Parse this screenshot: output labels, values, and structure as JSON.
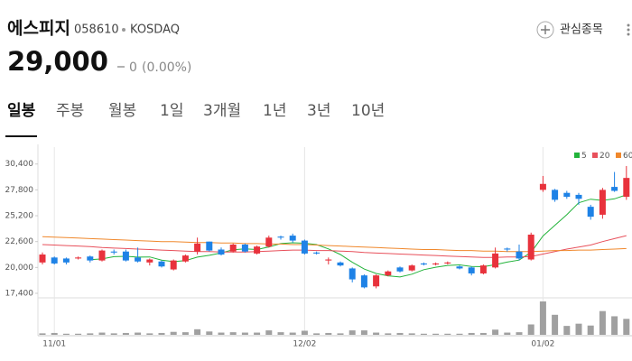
{
  "header": {
    "name": "에스피지",
    "code": "058610",
    "market": "KOSDAQ",
    "price": "29,000",
    "change": "0",
    "change_pct": "(0.00%)",
    "watch_button": "관심종목"
  },
  "tabs": [
    "일봉",
    "주봉",
    "월봉",
    "1일",
    "3개월",
    "1년",
    "3년",
    "10년"
  ],
  "chart_data": {
    "type": "candlestick",
    "categories": [
      null,
      "11/01",
      null,
      null,
      null,
      null,
      null,
      null,
      null,
      null,
      null,
      null,
      null,
      null,
      null,
      null,
      null,
      null,
      null,
      null,
      null,
      null,
      "12/02",
      null,
      null,
      null,
      null,
      null,
      null,
      null,
      null,
      null,
      null,
      null,
      null,
      null,
      null,
      null,
      null,
      null,
      null,
      null,
      "01/02",
      null,
      null,
      null,
      null,
      null,
      null,
      null
    ],
    "ohlc": {
      "open": [
        20500,
        21000,
        20900,
        20900,
        21100,
        20700,
        21600,
        21600,
        21000,
        20500,
        20600,
        19800,
        20600,
        21600,
        22600,
        21800,
        21600,
        22300,
        21400,
        22100,
        23100,
        23200,
        22700,
        21500,
        20700,
        20500,
        19900,
        19200,
        18100,
        19200,
        20000,
        19700,
        20400,
        20300,
        20400,
        20100,
        20000,
        19400,
        20000,
        21900,
        21600,
        20800,
        27800,
        27800,
        27500,
        27300,
        26100,
        25300,
        28100,
        27100
      ],
      "high": [
        21500,
        21100,
        21000,
        21100,
        21200,
        21800,
        21800,
        21800,
        22000,
        20900,
        20700,
        20800,
        21300,
        23000,
        22600,
        22000,
        22400,
        22400,
        22200,
        23200,
        23200,
        23400,
        22800,
        21600,
        21000,
        20600,
        20000,
        19300,
        19300,
        19700,
        20100,
        20300,
        20500,
        20500,
        20600,
        20200,
        20100,
        20300,
        22000,
        22000,
        22300,
        23500,
        29200,
        27900,
        27700,
        27500,
        26300,
        28000,
        29600,
        30200
      ],
      "low": [
        20300,
        20300,
        20300,
        20800,
        20500,
        20600,
        21300,
        20600,
        20500,
        20200,
        20000,
        19700,
        20500,
        21300,
        21600,
        21200,
        21500,
        21500,
        21300,
        22000,
        22800,
        22500,
        21300,
        21300,
        20300,
        20100,
        18500,
        17900,
        17900,
        19100,
        19500,
        19600,
        20200,
        20200,
        20300,
        19800,
        19200,
        19300,
        19900,
        21600,
        20700,
        20700,
        27600,
        26600,
        26900,
        26300,
        24800,
        24900,
        27600,
        26800
      ],
      "close": [
        21300,
        20400,
        20500,
        21000,
        20700,
        21700,
        21500,
        20700,
        20600,
        20800,
        20100,
        20700,
        21200,
        22400,
        21700,
        21300,
        22300,
        21600,
        22100,
        23000,
        23000,
        22700,
        21400,
        21400,
        20800,
        20200,
        18800,
        18000,
        19200,
        19600,
        19600,
        20200,
        20300,
        20400,
        20500,
        19900,
        19400,
        20200,
        21400,
        21800,
        20900,
        23300,
        28400,
        26800,
        27100,
        26900,
        25100,
        27800,
        27700,
        29000
      ]
    },
    "volume": [
      40000,
      50000,
      30000,
      30000,
      40000,
      60000,
      40000,
      50000,
      60000,
      40000,
      50000,
      80000,
      70000,
      150000,
      90000,
      60000,
      70000,
      60000,
      60000,
      120000,
      70000,
      60000,
      110000,
      40000,
      50000,
      40000,
      120000,
      120000,
      60000,
      40000,
      50000,
      40000,
      30000,
      30000,
      30000,
      30000,
      50000,
      50000,
      140000,
      60000,
      70000,
      280000,
      900000,
      540000,
      240000,
      300000,
      250000,
      640000,
      500000,
      430000
    ],
    "series": [
      {
        "name": "5",
        "color": "#22b33a",
        "values": [
          null,
          null,
          null,
          null,
          20780,
          20860,
          21080,
          21120,
          21040,
          21060,
          20740,
          20580,
          20680,
          21040,
          21220,
          21460,
          21780,
          21860,
          21800,
          22060,
          22400,
          22480,
          22440,
          22300,
          21860,
          21300,
          20520,
          19840,
          19400,
          19160,
          19040,
          19320,
          19780,
          20020,
          20200,
          20260,
          20100,
          20080,
          20280,
          20540,
          20740,
          21520,
          23160,
          24240,
          25300,
          26500,
          26860,
          26740,
          26900,
          27300
        ]
      },
      {
        "name": "20",
        "color": "#e8505b",
        "values": [
          22300,
          22250,
          22200,
          22150,
          22100,
          22000,
          21950,
          21900,
          21850,
          21800,
          21750,
          21700,
          21650,
          21600,
          21600,
          21550,
          21550,
          21550,
          21600,
          21650,
          21700,
          21750,
          21750,
          21700,
          21700,
          21650,
          21600,
          21500,
          21450,
          21400,
          21350,
          21300,
          21250,
          21200,
          21150,
          21100,
          21050,
          21000,
          21000,
          21050,
          21050,
          21100,
          21350,
          21600,
          21850,
          22050,
          22250,
          22600,
          22900,
          23200
        ]
      },
      {
        "name": "60",
        "color": "#f0882c",
        "values": [
          23100,
          23050,
          23000,
          22950,
          22900,
          22850,
          22800,
          22750,
          22700,
          22650,
          22600,
          22600,
          22550,
          22500,
          22500,
          22450,
          22450,
          22400,
          22400,
          22350,
          22350,
          22300,
          22300,
          22250,
          22200,
          22150,
          22100,
          22050,
          22000,
          21950,
          21900,
          21850,
          21800,
          21800,
          21750,
          21700,
          21700,
          21650,
          21650,
          21600,
          21600,
          21600,
          21650,
          21700,
          21700,
          21750,
          21750,
          21800,
          21850,
          21900
        ]
      }
    ],
    "up_color": "#e8323c",
    "down_color": "#1e82e6",
    "volume_color": "#a0a0a0",
    "ylim": [
      17000,
      32100
    ],
    "yticks": [
      {
        "value": 30400,
        "label": "30,400"
      },
      {
        "value": 27800,
        "label": "27,800"
      },
      {
        "value": 25200,
        "label": "25,200"
      },
      {
        "value": 22600,
        "label": "22,600"
      },
      {
        "value": 20000,
        "label": "20,000"
      },
      {
        "value": 17400,
        "label": "17,400"
      }
    ]
  }
}
